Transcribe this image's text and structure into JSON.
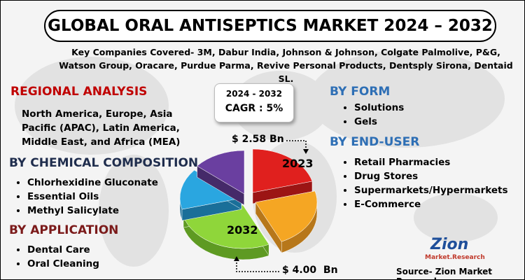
{
  "header": {
    "title": "GLOBAL ORAL ANTISEPTICS MARKET 2024 – 2032",
    "companies": "Key Companies Covered- 3M, Dabur India, Johnson & Johnson, Colgate Palmolive, P&G, Watson Group, Oracare, Purdue Parma, Revive Personal Products, Dentsply Sirona, Dentaid SL."
  },
  "regional": {
    "heading": "REGIONAL ANALYSIS",
    "text": "North America, Europe, Asia Pacific (APAC), Latin America, Middle East, and Africa (MEA)"
  },
  "chemical": {
    "heading": "BY CHEMICAL COMPOSITION",
    "items": [
      "Chlorhexidine Gluconate",
      "Essential Oils",
      "Methyl Salicylate"
    ]
  },
  "application": {
    "heading": "BY APPLICATION",
    "items": [
      "Dental Care",
      "Oral Cleaning"
    ]
  },
  "cagr": {
    "period": "2024 - 2032",
    "label": "CAGR : 5%"
  },
  "pie": {
    "value_2023": "$ 2.58 Bn",
    "year_2023": "2023",
    "year_2032": "2032",
    "value_2032": "$ 4.00  Bn"
  },
  "form": {
    "heading": "BY FORM",
    "items": [
      "Solutions",
      "Gels"
    ]
  },
  "end_user": {
    "heading": "BY END-USER",
    "items": [
      "Retail Pharmacies",
      "Drug Stores",
      "Supermarkets/Hypermarkets",
      "E-Commerce"
    ]
  },
  "logo": {
    "name": "Zion",
    "tagline": "Market.Research"
  },
  "source": "Source- Zion Market Research"
}
